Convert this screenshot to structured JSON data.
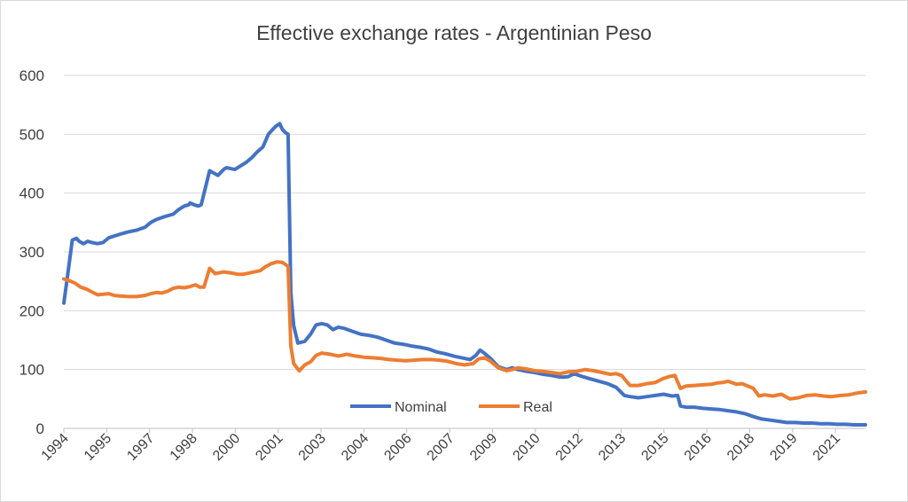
{
  "chart_data": {
    "type": "line",
    "title": "Effective exchange rates - Argentinian Peso",
    "xlabel": "",
    "ylabel": "",
    "ylim": [
      0,
      600
    ],
    "yticks": [
      "0",
      "100",
      "200",
      "300",
      "400",
      "500",
      "600"
    ],
    "xlim": [
      1994.0,
      2022.6
    ],
    "xticks": [
      "1994",
      "1995",
      "1997",
      "1998",
      "2000",
      "2001",
      "2003",
      "2004",
      "2006",
      "2007",
      "2009",
      "2010",
      "2012",
      "2013",
      "2015",
      "2016",
      "2018",
      "2019",
      "2021"
    ],
    "grid": true,
    "legend": "bottom-center",
    "series": [
      {
        "name": "Nominal",
        "color": "#4472c4",
        "x": [
          1994.0,
          1994.15,
          1994.3,
          1994.45,
          1994.55,
          1994.7,
          1994.85,
          1995.0,
          1995.2,
          1995.4,
          1995.6,
          1995.8,
          1996.0,
          1996.3,
          1996.6,
          1996.9,
          1997.1,
          1997.3,
          1997.6,
          1997.9,
          1998.1,
          1998.3,
          1998.45,
          1998.5,
          1998.65,
          1998.8,
          1998.9,
          1999.2,
          1999.5,
          1999.7,
          1999.8,
          2000.1,
          2000.3,
          2000.5,
          2000.7,
          2000.9,
          2001.1,
          2001.3,
          2001.45,
          2001.55,
          2001.7,
          2001.8,
          2001.9,
          2002.0,
          2002.1,
          2002.2,
          2002.35,
          2002.6,
          2002.8,
          2003.0,
          2003.2,
          2003.4,
          2003.6,
          2003.8,
          2004.0,
          2004.3,
          2004.6,
          2004.9,
          2005.2,
          2005.5,
          2005.8,
          2006.1,
          2006.4,
          2006.7,
          2007.0,
          2007.3,
          2007.6,
          2007.9,
          2008.2,
          2008.5,
          2008.7,
          2008.85,
          2009.0,
          2009.2,
          2009.5,
          2009.8,
          2010.0,
          2010.2,
          2010.5,
          2010.8,
          2011.1,
          2011.4,
          2011.6,
          2011.8,
          2012.0,
          2012.2,
          2012.5,
          2012.8,
          2013.1,
          2013.4,
          2013.7,
          2014.0,
          2014.2,
          2014.5,
          2014.8,
          2015.1,
          2015.4,
          2015.7,
          2015.9,
          2016.0,
          2016.2,
          2016.5,
          2016.8,
          2017.1,
          2017.4,
          2017.7,
          2018.0,
          2018.3,
          2018.6,
          2018.9,
          2019.2,
          2019.5,
          2019.8,
          2020.1,
          2020.4,
          2020.7,
          2021.0,
          2021.3,
          2021.6,
          2021.9,
          2022.2,
          2022.6
        ],
        "values": [
          213,
          265,
          320,
          323,
          318,
          314,
          318,
          316,
          314,
          316,
          324,
          327,
          330,
          334,
          337,
          342,
          350,
          355,
          360,
          364,
          372,
          378,
          380,
          383,
          380,
          378,
          380,
          438,
          430,
          440,
          443,
          440,
          446,
          452,
          460,
          470,
          478,
          500,
          508,
          513,
          518,
          508,
          503,
          500,
          230,
          175,
          145,
          148,
          160,
          176,
          178,
          176,
          168,
          172,
          170,
          165,
          160,
          158,
          155,
          150,
          145,
          143,
          140,
          138,
          135,
          130,
          127,
          123,
          120,
          117,
          124,
          133,
          128,
          120,
          105,
          100,
          103,
          100,
          97,
          95,
          92,
          90,
          88,
          87,
          88,
          93,
          88,
          84,
          80,
          76,
          70,
          56,
          54,
          52,
          54,
          56,
          58,
          55,
          56,
          38,
          36,
          36,
          34,
          33,
          32,
          30,
          28,
          25,
          20,
          16,
          14,
          12,
          10,
          10,
          9,
          9,
          8,
          8,
          7,
          7,
          6,
          6
        ]
      },
      {
        "name": "Real",
        "color": "#ed7d31",
        "x": [
          1994.0,
          1994.2,
          1994.4,
          1994.6,
          1994.8,
          1995.0,
          1995.2,
          1995.4,
          1995.6,
          1995.8,
          1996.0,
          1996.3,
          1996.6,
          1996.9,
          1997.1,
          1997.3,
          1997.5,
          1997.7,
          1997.9,
          1998.1,
          1998.3,
          1998.5,
          1998.7,
          1998.85,
          1999.0,
          1999.2,
          1999.4,
          1999.7,
          2000.0,
          2000.2,
          2000.4,
          2000.6,
          2000.8,
          2001.0,
          2001.2,
          2001.4,
          2001.6,
          2001.8,
          2001.95,
          2002.0,
          2002.1,
          2002.2,
          2002.4,
          2002.6,
          2002.8,
          2003.0,
          2003.2,
          2003.5,
          2003.8,
          2004.1,
          2004.4,
          2004.7,
          2005.0,
          2005.3,
          2005.6,
          2005.9,
          2006.2,
          2006.5,
          2006.8,
          2007.1,
          2007.4,
          2007.7,
          2008.0,
          2008.3,
          2008.6,
          2008.8,
          2009.0,
          2009.2,
          2009.5,
          2009.8,
          2010.0,
          2010.2,
          2010.5,
          2010.8,
          2011.1,
          2011.4,
          2011.7,
          2012.0,
          2012.3,
          2012.6,
          2012.9,
          2013.2,
          2013.5,
          2013.7,
          2013.9,
          2014.2,
          2014.5,
          2014.8,
          2015.1,
          2015.4,
          2015.6,
          2015.8,
          2016.0,
          2016.2,
          2016.5,
          2016.8,
          2017.1,
          2017.3,
          2017.5,
          2017.7,
          2018.0,
          2018.2,
          2018.4,
          2018.6,
          2018.8,
          2019.0,
          2019.3,
          2019.6,
          2019.9,
          2020.2,
          2020.5,
          2020.8,
          2021.1,
          2021.4,
          2021.7,
          2022.0,
          2022.3,
          2022.6
        ],
        "values": [
          254,
          251,
          247,
          240,
          237,
          232,
          227,
          228,
          229,
          226,
          225,
          224,
          224,
          226,
          229,
          231,
          230,
          233,
          238,
          240,
          239,
          241,
          244,
          240,
          240,
          272,
          263,
          266,
          264,
          262,
          262,
          264,
          266,
          268,
          275,
          280,
          283,
          282,
          277,
          275,
          140,
          110,
          98,
          108,
          113,
          124,
          128,
          126,
          123,
          126,
          123,
          121,
          120,
          119,
          117,
          116,
          115,
          116,
          117,
          117,
          116,
          114,
          110,
          108,
          110,
          118,
          120,
          115,
          103,
          98,
          100,
          103,
          101,
          98,
          97,
          95,
          93,
          96,
          97,
          100,
          98,
          95,
          92,
          93,
          90,
          73,
          73,
          76,
          78,
          85,
          88,
          90,
          68,
          72,
          73,
          74,
          75,
          77,
          78,
          80,
          75,
          76,
          72,
          68,
          55,
          57,
          55,
          58,
          50,
          52,
          56,
          57,
          55,
          54,
          56,
          57,
          60,
          62
        ]
      }
    ]
  }
}
